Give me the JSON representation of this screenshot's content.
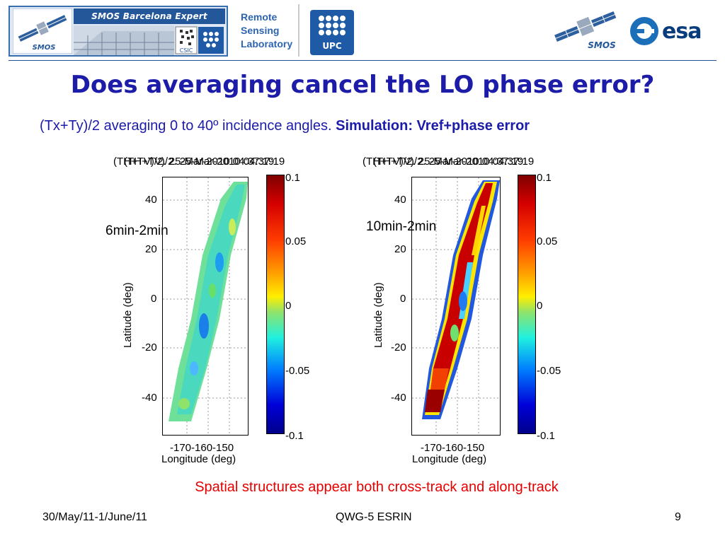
{
  "header": {
    "banner_text": "SMOS Barcelona Expert Centre",
    "smos_logo_text": "SMOS",
    "csic_logo_text": "CSIC",
    "upc_logo_text": "UPC",
    "lab_line1": "Remote",
    "lab_line2": "Sensing",
    "lab_line3": "Laboratory",
    "esa_logo_text": "esa"
  },
  "slide": {
    "title": "Does averaging cancel the LO phase error?",
    "subtitle_plain": "(Tx+Ty)/2 averaging 0 to 40º incidence angles.",
    "subtitle_bold": "Simulation: Vref+phase error",
    "caption": "Spatial structures appear both cross-track and along-track"
  },
  "plots": [
    {
      "title_a": "(TH+TV)/2. 25-Mar-2010 04:37:19",
      "title_b": "(TH+TV)/2. 25-Mar-2010 04:37:19",
      "annotation": "6min-2min",
      "ylabel": "Latitude (deg)",
      "xlabel": "Longitude (deg)",
      "yticks": [
        "40",
        "20",
        "0",
        "-20",
        "-40"
      ],
      "xticks": "-170-160-150",
      "cbar_ticks": [
        "0.1",
        "0.05",
        "0",
        "-0.05",
        "-0.1"
      ]
    },
    {
      "title_a": "(TH+TV)/2. 25-Mar-2010 04:37:19",
      "title_b": "(TH+TV)/2. 25-Mar-2010 04:37:19",
      "annotation": "10min-2min",
      "ylabel": "Latitude (deg)",
      "xlabel": "Longitude (deg)",
      "yticks": [
        "40",
        "20",
        "0",
        "-20",
        "-40"
      ],
      "xticks": "-170-160-150",
      "cbar_ticks": [
        "0.1",
        "0.05",
        "0",
        "-0.05",
        "-0.1"
      ]
    }
  ],
  "footer": {
    "date": "30/May/11-1/June/11",
    "event": "QWG-5 ESRIN",
    "page": "9"
  },
  "colors": {
    "title_blue": "#1c1ca8",
    "caption_red": "#e60000",
    "banner_blue": "#23579a"
  }
}
